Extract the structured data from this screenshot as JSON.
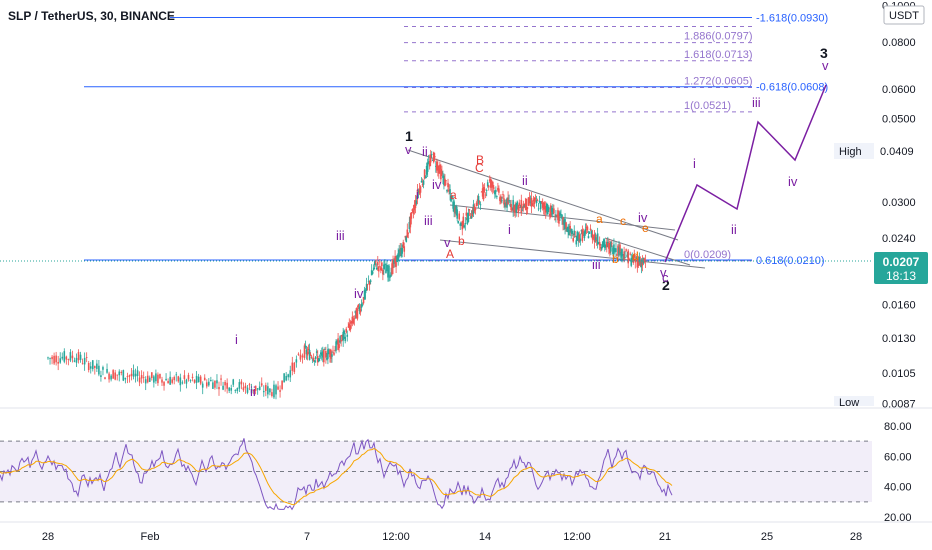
{
  "title": "SLP / TetherUS, 30, BINANCE",
  "currency_badge": "USDT",
  "price_axis": {
    "ticks": [
      {
        "value": 0.1,
        "label": "0.1000"
      },
      {
        "value": 0.08,
        "label": "0.0800"
      },
      {
        "value": 0.06,
        "label": "0.0600"
      },
      {
        "value": 0.05,
        "label": "0.0500"
      },
      {
        "value": 0.03,
        "label": "0.0300"
      },
      {
        "value": 0.024,
        "label": "0.0240"
      },
      {
        "value": 0.016,
        "label": "0.0160"
      },
      {
        "value": 0.013,
        "label": "0.0130"
      },
      {
        "value": 0.0105,
        "label": "0.0105"
      },
      {
        "value": 0.0087,
        "label": "0.0087"
      }
    ],
    "high_label": "High",
    "high_value": "0.0409",
    "low_label": "Low",
    "current_price": "0.0207",
    "countdown": "18:13"
  },
  "time_axis": [
    {
      "label": "28",
      "x": 0
    },
    {
      "label": "Feb",
      "x": 4
    },
    {
      "label": "7",
      "x": 10
    },
    {
      "label": "12:00",
      "x": 12.5
    },
    {
      "label": "14",
      "x": 15.5
    },
    {
      "label": "12:00",
      "x": 18.5
    },
    {
      "label": "21",
      "x": 21
    },
    {
      "label": "25",
      "x": 24.5
    },
    {
      "label": "28",
      "x": 27.5
    }
  ],
  "fib_levels": [
    {
      "label": "1.886(0.0797)",
      "value": 0.0797
    },
    {
      "label": "1.618(0.0713)",
      "value": 0.0713
    },
    {
      "label": "1.272(0.0605)",
      "value": 0.0605
    },
    {
      "label": "1(0.0521)",
      "value": 0.0521
    },
    {
      "label": "0(0.0209)",
      "value": 0.0209
    }
  ],
  "blue_levels": [
    {
      "label": "-1.618(0.0930)",
      "value": 0.093
    },
    {
      "label": "-0.618(0.0608)",
      "value": 0.0608
    },
    {
      "label": "0.618(0.0210)",
      "value": 0.021
    }
  ],
  "wave_labels": {
    "major": [
      "1",
      "2",
      "3"
    ],
    "minor": [
      "i",
      "ii",
      "iii",
      "iv",
      "v"
    ],
    "abc": [
      "a",
      "b",
      "c",
      "A",
      "B",
      "C",
      "d",
      "e"
    ]
  },
  "rsi": {
    "ticks": [
      {
        "value": 80,
        "label": "80.00"
      },
      {
        "value": 60,
        "label": "60.00"
      },
      {
        "value": 40,
        "label": "40.00"
      },
      {
        "value": 20,
        "label": "20.00"
      }
    ],
    "upper_band": 70,
    "mid_band": 50,
    "lower_band": 30
  },
  "chart_data": {
    "type": "line",
    "title": "SLP / TetherUS, 30, BINANCE",
    "xlabel": "",
    "ylabel": "",
    "yscale": "log",
    "ylim": [
      0.0087,
      0.1
    ],
    "x": [
      0,
      1,
      2,
      3,
      4,
      5,
      6,
      7,
      8,
      9,
      9.5,
      10,
      10.5,
      11,
      11.5,
      12,
      12.5,
      13,
      13.5,
      14,
      14.5,
      15,
      15.5,
      16,
      16.5,
      17,
      17.5,
      18,
      18.5,
      19,
      19.5,
      20,
      20.5,
      21
    ],
    "series": [
      {
        "name": "price",
        "values": [
          0.0115,
          0.0116,
          0.0105,
          0.0103,
          0.0101,
          0.01,
          0.0099,
          0.0096,
          0.0094,
          0.012,
          0.0115,
          0.012,
          0.0135,
          0.016,
          0.0205,
          0.0195,
          0.023,
          0.032,
          0.04,
          0.033,
          0.026,
          0.029,
          0.034,
          0.03,
          0.029,
          0.03,
          0.029,
          0.027,
          0.024,
          0.025,
          0.023,
          0.0225,
          0.021,
          0.0207
        ]
      },
      {
        "name": "projection",
        "values": [
          null,
          null,
          null,
          null,
          null,
          null,
          null,
          null,
          null,
          null,
          null,
          null,
          null,
          null,
          null,
          null,
          null,
          null,
          null,
          null,
          null,
          null,
          null,
          null,
          null,
          null,
          null,
          null,
          null,
          null,
          null,
          null,
          0.021,
          0.0207
        ]
      }
    ],
    "projection_path": {
      "x": [
        21,
        22,
        23,
        24,
        25,
        26,
        27
      ],
      "y": [
        0.0207,
        0.034,
        0.028,
        0.048,
        0.039,
        0.0608,
        0.065
      ]
    },
    "grid": false,
    "legend": "none"
  }
}
